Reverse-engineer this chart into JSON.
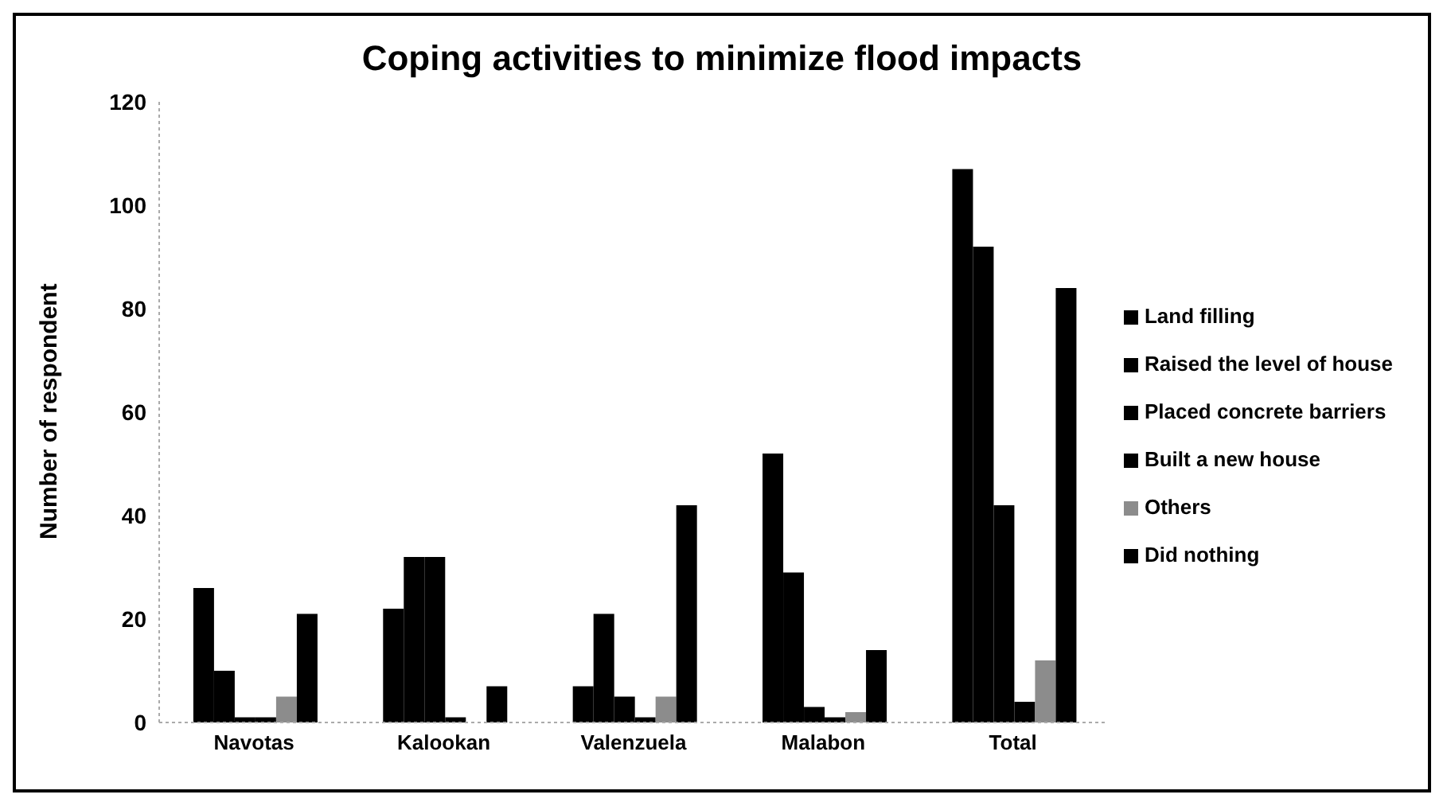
{
  "chart_data": {
    "type": "bar",
    "title": "Coping activities to minimize flood impacts",
    "ylabel": "Number of respondent",
    "categories": [
      "Navotas",
      "Kalookan",
      "Valenzuela",
      "Malabon",
      "Total"
    ],
    "series": [
      {
        "name": "Land filling",
        "color": "#000000",
        "values": [
          26,
          22,
          7,
          52,
          107
        ]
      },
      {
        "name": "Raised the level of house",
        "color": "#000000",
        "values": [
          10,
          32,
          21,
          29,
          92
        ]
      },
      {
        "name": "Placed concrete barriers",
        "color": "#000000",
        "values": [
          1,
          32,
          5,
          3,
          42
        ]
      },
      {
        "name": "Built a new house",
        "color": "#000000",
        "values": [
          1,
          1,
          1,
          1,
          4
        ]
      },
      {
        "name": "Others",
        "color": "#8c8c8c",
        "values": [
          5,
          0,
          5,
          2,
          12
        ]
      },
      {
        "name": "Did nothing",
        "color": "#000000",
        "values": [
          21,
          7,
          42,
          14,
          84
        ]
      }
    ],
    "ylim": [
      0,
      120
    ],
    "yticks": [
      0,
      20,
      40,
      60,
      80,
      100,
      120
    ],
    "legend": "right"
  }
}
